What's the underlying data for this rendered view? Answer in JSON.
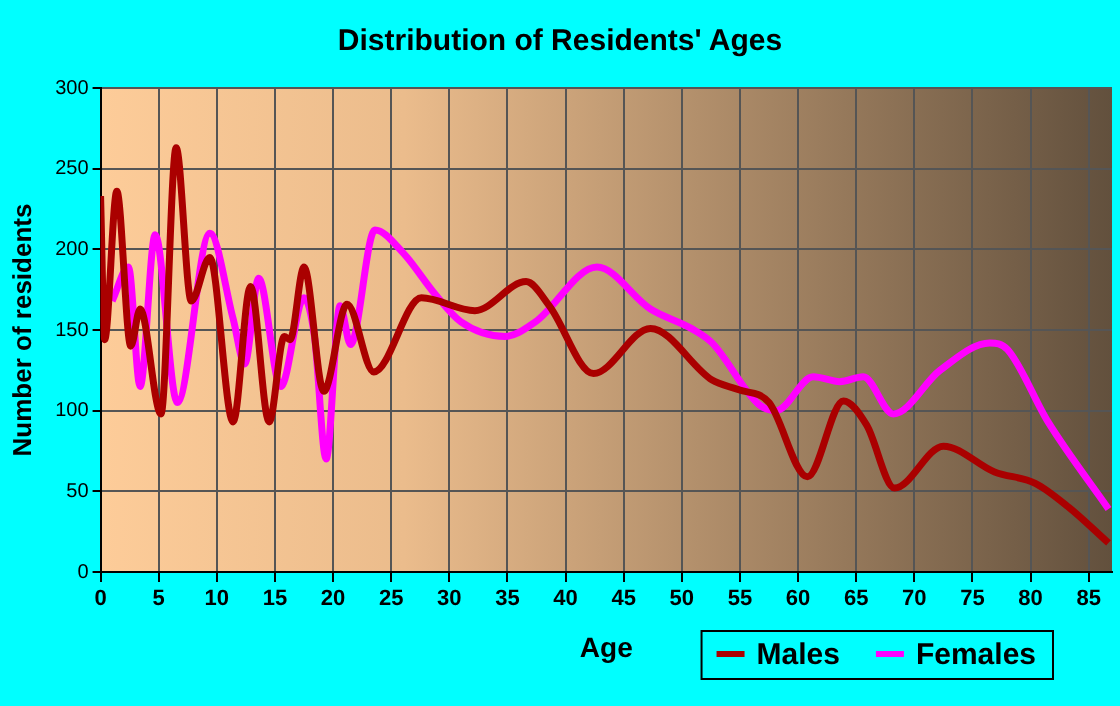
{
  "chart_data": {
    "type": "line",
    "title": "Distribution of Residents' Ages",
    "xlabel": "Age",
    "ylabel": "Number of residents",
    "xlim": [
      0,
      87
    ],
    "xticks": [
      0,
      5,
      10,
      15,
      20,
      25,
      30,
      35,
      40,
      45,
      50,
      55,
      60,
      65,
      70,
      75,
      80,
      85
    ],
    "ylim": [
      0,
      300
    ],
    "yticks": [
      0,
      50,
      100,
      150,
      200,
      250,
      300
    ],
    "grid": true,
    "legend": "bottom right",
    "marker": "none",
    "line_style": "solid",
    "series": [
      {
        "name": "Males",
        "color": "#aa0000",
        "x": [
          0,
          0.35,
          1.4,
          2.6,
          3.4,
          5.2,
          6.5,
          7.8,
          9.4,
          11.4,
          12.9,
          14.5,
          15.8,
          16.3,
          17.5,
          19.2,
          21.2,
          23.5,
          27.6,
          32.2,
          36.6,
          38.6,
          42.4,
          47.3,
          52.6,
          54.9,
          57.5,
          60.8,
          63.9,
          65.9,
          68.3,
          72.5,
          76.9,
          80.4,
          83.3,
          86.7
        ],
        "values": [
          233,
          144,
          236,
          140,
          163,
          98,
          263,
          168,
          195,
          93,
          177,
          93,
          146,
          144,
          189,
          112,
          166,
          124,
          170,
          162,
          180,
          165,
          123,
          151,
          119,
          113,
          105,
          59,
          106,
          91,
          52,
          78,
          62,
          55,
          40,
          18
        ]
      },
      {
        "name": "Females",
        "color": "#ff00ff",
        "x": [
          1,
          2.4,
          3.4,
          4.7,
          6.6,
          9.4,
          11.4,
          12.4,
          13.6,
          15.5,
          17.5,
          18.4,
          19.4,
          20.6,
          21.5,
          23.6,
          26,
          28.8,
          31,
          34.8,
          37.4,
          42.7,
          47.3,
          50.8,
          52.6,
          56.6,
          58.1,
          61.3,
          63.6,
          65.6,
          68.2,
          72.2,
          76.5,
          78,
          81.5,
          86.7
        ],
        "values": [
          168,
          189,
          115,
          209,
          105,
          210,
          157,
          129,
          182,
          115,
          170,
          146,
          70,
          165,
          141,
          212,
          198,
          172,
          155,
          146,
          155,
          189,
          163,
          151,
          142,
          104,
          100,
          121,
          118,
          121,
          98,
          125,
          142,
          138,
          93,
          39
        ]
      }
    ]
  }
}
